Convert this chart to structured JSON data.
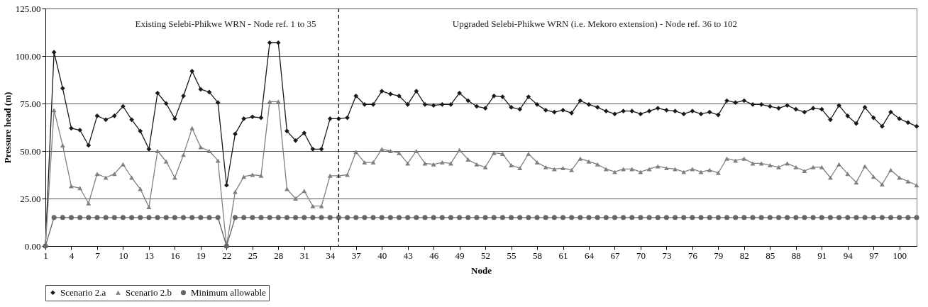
{
  "chart_data": {
    "type": "line",
    "xlabel": "Node",
    "ylabel": "Pressure head (m)",
    "x": [
      1,
      2,
      3,
      4,
      5,
      6,
      7,
      8,
      9,
      10,
      11,
      12,
      13,
      14,
      15,
      16,
      17,
      18,
      19,
      20,
      21,
      22,
      23,
      24,
      25,
      26,
      27,
      28,
      29,
      30,
      31,
      32,
      33,
      34,
      35,
      36,
      37,
      38,
      39,
      40,
      41,
      42,
      43,
      44,
      45,
      46,
      47,
      48,
      49,
      50,
      51,
      52,
      53,
      54,
      55,
      56,
      57,
      58,
      59,
      60,
      61,
      62,
      63,
      64,
      65,
      66,
      67,
      68,
      69,
      70,
      71,
      72,
      73,
      74,
      75,
      76,
      77,
      78,
      79,
      80,
      81,
      82,
      83,
      84,
      85,
      86,
      87,
      88,
      89,
      90,
      91,
      92,
      93,
      94,
      95,
      96,
      97,
      98,
      99,
      100,
      101,
      102
    ],
    "series": [
      {
        "name": "Scenario 2.a",
        "color": "#1a1a1a",
        "marker": "diamond",
        "values": [
          0,
          102,
          83,
          62,
          61,
          53,
          68.5,
          66.5,
          68.5,
          73.5,
          66.5,
          60.5,
          51,
          80.5,
          75,
          67,
          79,
          92,
          82.5,
          81,
          75.5,
          32,
          59,
          67,
          68,
          67.5,
          107,
          107,
          60.5,
          55.5,
          59.5,
          51,
          51,
          67,
          67,
          67.5,
          79,
          74.5,
          74.5,
          81.5,
          80,
          79,
          74.5,
          81.5,
          74.5,
          74,
          74.5,
          74.5,
          80.5,
          76.5,
          73.5,
          72.5,
          79,
          78.5,
          73,
          72,
          78.5,
          74.5,
          71.5,
          70.5,
          71.5,
          70,
          76.5,
          74.5,
          73,
          71,
          69.5,
          71,
          71,
          69.5,
          71,
          72.5,
          71.5,
          71,
          69.5,
          71,
          69.5,
          70.5,
          69,
          76.5,
          75.5,
          76.5,
          74.5,
          74.5,
          73.5,
          72.5,
          74,
          72,
          70.5,
          72.5,
          72,
          66.5,
          74,
          68.5,
          64.5,
          73,
          67.5,
          63,
          70.5,
          67,
          65,
          63
        ]
      },
      {
        "name": "Scenario 2.b",
        "color": "#808080",
        "marker": "triangle",
        "values": [
          0,
          71.5,
          53,
          31.5,
          30.5,
          22.5,
          38,
          36,
          38,
          43,
          36,
          30,
          20.5,
          50,
          44.5,
          36,
          48,
          62,
          52,
          50,
          45,
          0,
          28.5,
          36.5,
          37.5,
          37,
          76,
          76,
          30,
          25,
          29,
          21,
          21,
          37,
          37,
          37.5,
          49.5,
          44,
          44,
          51,
          50,
          49,
          43.5,
          50,
          43.5,
          43,
          44,
          43.5,
          50.5,
          45.5,
          43,
          41.5,
          49,
          48.5,
          42.5,
          41,
          48.5,
          44,
          41.5,
          40.5,
          41,
          40,
          46,
          44.5,
          43,
          40.5,
          39,
          40.5,
          40.5,
          39,
          40.5,
          42,
          41,
          40.5,
          39,
          40.5,
          39,
          40,
          38.5,
          46,
          45,
          46,
          43.5,
          43.5,
          42.5,
          41.5,
          43.5,
          41.5,
          39.5,
          41.5,
          41.5,
          36,
          43,
          38,
          33.5,
          42,
          36.5,
          32.5,
          40,
          36,
          34,
          32
        ]
      },
      {
        "name": "Minimum allowable",
        "color": "#666666",
        "marker": "circle",
        "values": [
          0,
          15,
          15,
          15,
          15,
          15,
          15,
          15,
          15,
          15,
          15,
          15,
          15,
          15,
          15,
          15,
          15,
          15,
          15,
          15,
          15,
          0,
          15,
          15,
          15,
          15,
          15,
          15,
          15,
          15,
          15,
          15,
          15,
          15,
          15,
          15,
          15,
          15,
          15,
          15,
          15,
          15,
          15,
          15,
          15,
          15,
          15,
          15,
          15,
          15,
          15,
          15,
          15,
          15,
          15,
          15,
          15,
          15,
          15,
          15,
          15,
          15,
          15,
          15,
          15,
          15,
          15,
          15,
          15,
          15,
          15,
          15,
          15,
          15,
          15,
          15,
          15,
          15,
          15,
          15,
          15,
          15,
          15,
          15,
          15,
          15,
          15,
          15,
          15,
          15,
          15,
          15,
          15,
          15,
          15,
          15,
          15,
          15,
          15,
          15,
          15,
          15
        ]
      }
    ],
    "xlim": [
      1,
      102
    ],
    "xticks": [
      1,
      4,
      7,
      10,
      13,
      16,
      19,
      22,
      25,
      28,
      31,
      34,
      37,
      40,
      43,
      46,
      49,
      52,
      55,
      58,
      61,
      64,
      67,
      70,
      73,
      76,
      79,
      82,
      85,
      88,
      91,
      94,
      97,
      100
    ],
    "ylim": [
      0,
      125
    ],
    "yticks": [
      {
        "value": 0,
        "label": "0.00"
      },
      {
        "value": 25,
        "label": "25.00"
      },
      {
        "value": 50,
        "label": "50.00"
      },
      {
        "value": 75,
        "label": "75.00"
      },
      {
        "value": 100,
        "label": "100.00"
      },
      {
        "value": 125,
        "label": "125.00"
      }
    ],
    "ref_lines": [
      {
        "axis": "x",
        "value": 35,
        "label": null,
        "color": "#000000",
        "line_style": "dashed"
      }
    ],
    "annotations": [
      "Existing Selebi-Phikwe WRN - Node ref. 1 to 35",
      "Upgraded Selebi-Phikwe WRN (i.e. Mekoro extension) - Node ref. 36 to 102"
    ],
    "grid": "y",
    "legend": "bottom",
    "line_style": "solid"
  }
}
